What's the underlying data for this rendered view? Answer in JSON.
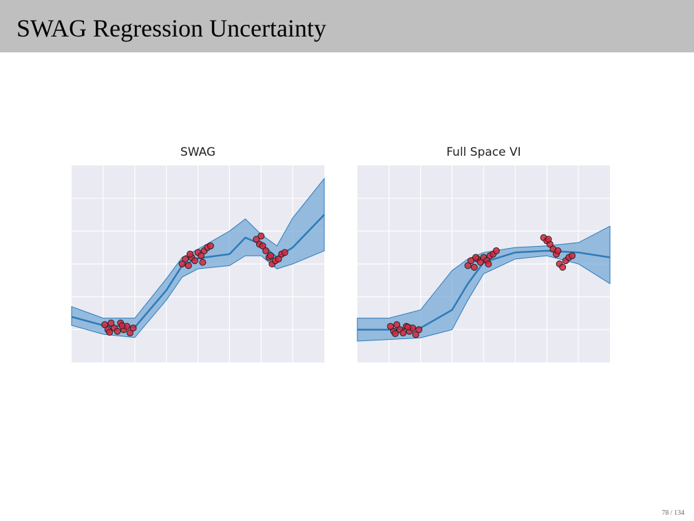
{
  "header": {
    "title": "SWAG Regression Uncertainty"
  },
  "footer": {
    "page": "78 / 134"
  },
  "chart_data": [
    {
      "type": "line",
      "title": "SWAG",
      "xlim": [
        0,
        8
      ],
      "ylim": [
        0,
        6
      ],
      "xticks": [
        1,
        2,
        3,
        4,
        5,
        6,
        7
      ],
      "yticks": [
        1,
        2,
        3,
        4,
        5
      ],
      "grid": true,
      "line_color": "#2c7bb6",
      "band_color": "#6fa5d6",
      "point_color": "#d7263d",
      "x": [
        0,
        1,
        2,
        3,
        3.5,
        4,
        5,
        5.5,
        6,
        6.5,
        7,
        8
      ],
      "mean": [
        1.39,
        1.13,
        1.07,
        2.2,
        2.95,
        3.17,
        3.3,
        3.8,
        3.6,
        3.2,
        3.5,
        4.5
      ],
      "upper": [
        1.7,
        1.35,
        1.35,
        2.55,
        3.2,
        3.45,
        4.0,
        4.37,
        3.9,
        3.55,
        4.4,
        5.6
      ],
      "lower": [
        1.13,
        0.86,
        0.76,
        1.9,
        2.6,
        2.85,
        2.95,
        3.25,
        3.25,
        2.85,
        3.0,
        3.4
      ],
      "points": {
        "x": [
          1.05,
          1.15,
          1.25,
          1.35,
          1.45,
          1.55,
          1.65,
          1.75,
          1.85,
          1.95,
          1.2,
          1.6,
          3.5,
          3.6,
          3.7,
          3.8,
          3.9,
          4.0,
          4.1,
          4.2,
          4.3,
          4.4,
          3.75,
          4.15,
          5.85,
          5.95,
          6.05,
          6.15,
          6.25,
          6.35,
          6.45,
          6.55,
          6.65,
          6.75,
          6.0,
          6.3
        ],
        "y": [
          1.15,
          1.0,
          1.2,
          1.05,
          0.95,
          1.2,
          1.0,
          1.1,
          0.9,
          1.05,
          0.92,
          1.12,
          3.0,
          3.15,
          2.95,
          3.2,
          3.1,
          3.35,
          3.25,
          3.4,
          3.5,
          3.55,
          3.3,
          3.05,
          3.75,
          3.6,
          3.55,
          3.4,
          3.2,
          3.0,
          3.1,
          3.15,
          3.3,
          3.35,
          3.85,
          3.25
        ]
      }
    },
    {
      "type": "line",
      "title": "Full Space VI",
      "xlim": [
        0,
        8
      ],
      "ylim": [
        0,
        6
      ],
      "xticks": [
        1,
        2,
        3,
        4,
        5,
        6,
        7
      ],
      "yticks": [
        1,
        2,
        3,
        4,
        5
      ],
      "grid": true,
      "line_color": "#2c7bb6",
      "band_color": "#6fa5d6",
      "point_color": "#d7263d",
      "x": [
        0,
        1,
        2,
        3,
        3.5,
        4,
        5,
        6,
        7,
        8
      ],
      "mean": [
        1.0,
        1.0,
        1.05,
        1.6,
        2.4,
        3.05,
        3.35,
        3.4,
        3.35,
        3.2
      ],
      "upper": [
        1.35,
        1.35,
        1.6,
        2.8,
        3.15,
        3.35,
        3.5,
        3.55,
        3.65,
        4.15
      ],
      "lower": [
        0.65,
        0.7,
        0.75,
        1.0,
        1.9,
        2.7,
        3.15,
        3.25,
        3.0,
        2.4
      ],
      "points": {
        "x": [
          1.05,
          1.15,
          1.25,
          1.35,
          1.45,
          1.55,
          1.65,
          1.75,
          1.85,
          1.95,
          1.2,
          1.6,
          3.5,
          3.6,
          3.7,
          3.8,
          3.9,
          4.0,
          4.1,
          4.2,
          4.3,
          4.4,
          3.75,
          4.15,
          5.9,
          6.0,
          6.1,
          6.2,
          6.3,
          6.4,
          6.5,
          6.6,
          6.7,
          6.8,
          6.05,
          6.35
        ],
        "y": [
          1.1,
          0.95,
          1.15,
          1.0,
          0.9,
          1.1,
          0.95,
          1.05,
          0.85,
          1.0,
          0.88,
          1.08,
          2.95,
          3.1,
          2.9,
          3.15,
          3.05,
          3.2,
          3.1,
          3.25,
          3.3,
          3.4,
          3.2,
          3.0,
          3.8,
          3.7,
          3.6,
          3.45,
          3.3,
          3.0,
          2.9,
          3.1,
          3.2,
          3.25,
          3.75,
          3.4
        ]
      }
    }
  ]
}
